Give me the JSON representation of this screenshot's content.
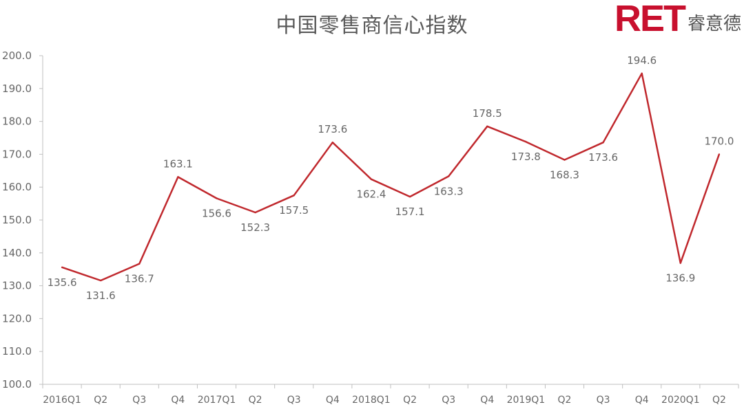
{
  "chart_data": {
    "type": "line",
    "title": "中国零售商信心指数",
    "categories": [
      "2016Q1",
      "Q2",
      "Q3",
      "Q4",
      "2017Q1",
      "Q2",
      "Q3",
      "Q4",
      "2018Q1",
      "Q2",
      "Q3",
      "Q4",
      "2019Q1",
      "Q2",
      "Q3",
      "Q4",
      "2020Q1",
      "Q2"
    ],
    "series": [
      {
        "values": [
          135.6,
          131.6,
          136.7,
          163.1,
          156.6,
          152.3,
          157.5,
          173.6,
          162.4,
          157.1,
          163.3,
          178.5,
          173.8,
          168.3,
          173.6,
          194.6,
          136.9,
          170.0
        ],
        "color": "#c0282d"
      }
    ],
    "data_labels": [
      "135.6",
      "131.6",
      "136.7",
      "163.1",
      "156.6",
      "152.3",
      "157.5",
      "173.6",
      "162.4",
      "157.1",
      "163.3",
      "178.5",
      "173.8",
      "168.3",
      "173.6",
      "194.6",
      "136.9",
      "170.0"
    ],
    "ylim": [
      100,
      200
    ],
    "yticks": [
      "100.0",
      "110.0",
      "120.0",
      "130.0",
      "140.0",
      "150.0",
      "160.0",
      "170.0",
      "180.0",
      "190.0",
      "200.0"
    ],
    "xlabel": "",
    "ylabel": "",
    "grid": false,
    "legend": "none"
  },
  "logo": {
    "mark": "RET",
    "text": "睿意德",
    "color": "#c8102e"
  }
}
